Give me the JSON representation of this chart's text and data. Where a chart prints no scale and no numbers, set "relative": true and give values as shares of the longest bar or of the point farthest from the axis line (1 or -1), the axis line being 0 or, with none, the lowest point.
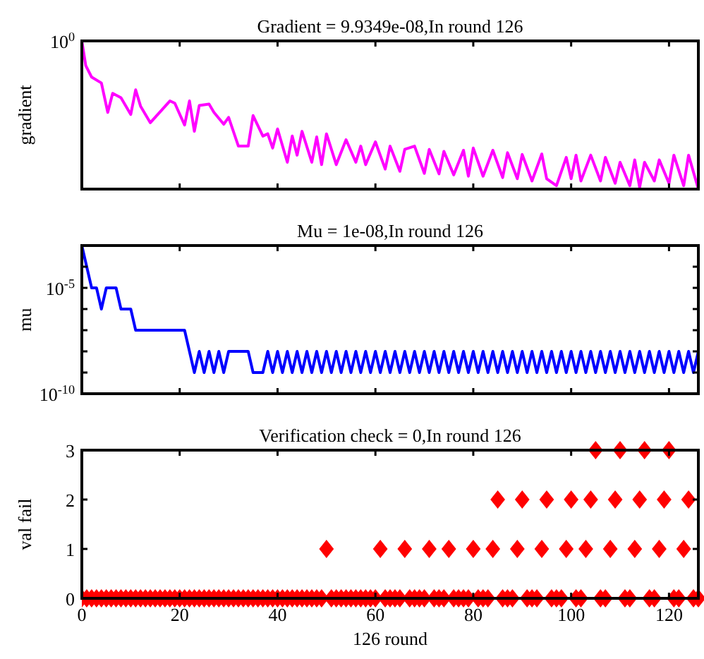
{
  "chart_data": [
    {
      "type": "line",
      "title": "Gradient = 9.9349e-08,In round 126",
      "ylabel": "gradient",
      "relative": true,
      "annotations": [
        "10$^{0}$"
      ],
      "xlim": [
        0,
        126
      ],
      "xticks": [
        0,
        20,
        40,
        60,
        80,
        100,
        120
      ],
      "tick_labels": false,
      "series": [
        {
          "color": "#ff00ff",
          "x": [
            0,
            0.8,
            2,
            4,
            5.3,
            6.3,
            8,
            10,
            11,
            12,
            14,
            18,
            19,
            21,
            22,
            23,
            24,
            26,
            27,
            29,
            30,
            32,
            34,
            35,
            37,
            38,
            39,
            40,
            42,
            43,
            44,
            45,
            47,
            48,
            49,
            50,
            52,
            54,
            56,
            57,
            58,
            60,
            62,
            63,
            65,
            66,
            68,
            70,
            71,
            73,
            74,
            76,
            78,
            79,
            80,
            82,
            84,
            86,
            87,
            89,
            90,
            92,
            94,
            95,
            97,
            99,
            100,
            101,
            102,
            104,
            106,
            107,
            109,
            110,
            112,
            113,
            114,
            115,
            117,
            118,
            120,
            121,
            123,
            124,
            126
          ],
          "values": [
            1,
            0.834,
            0.756,
            0.716,
            0.518,
            0.646,
            0.617,
            0.504,
            0.67,
            0.56,
            0.448,
            0.595,
            0.58,
            0.432,
            0.595,
            0.39,
            0.564,
            0.574,
            0.518,
            0.438,
            0.484,
            0.29,
            0.29,
            0.496,
            0.358,
            0.373,
            0.277,
            0.406,
            0.181,
            0.358,
            0.229,
            0.39,
            0.181,
            0.352,
            0.165,
            0.373,
            0.165,
            0.333,
            0.181,
            0.29,
            0.165,
            0.319,
            0.135,
            0.29,
            0.12,
            0.268,
            0.29,
            0.106,
            0.268,
            0.103,
            0.255,
            0.096,
            0.262,
            0.087,
            0.277,
            0.087,
            0.262,
            0.078,
            0.246,
            0.07,
            0.234,
            0.055,
            0.237,
            0.07,
            0.023,
            0.214,
            0.07,
            0.229,
            0.055,
            0.229,
            0.055,
            0.214,
            0.039,
            0.181,
            0.023,
            0.197,
            0.012,
            0.181,
            0.055,
            0.197,
            0.039,
            0.229,
            0.023,
            0.229,
            0
          ]
        }
      ]
    },
    {
      "type": "line",
      "title": "Mu = 1e-08,In round 126",
      "ylabel": "mu",
      "log": "y",
      "xlim": [
        0,
        126
      ],
      "xticks": [
        0,
        20,
        40,
        60,
        80,
        100,
        120
      ],
      "ylim": [
        1e-10,
        0.001
      ],
      "yticks": [
        {
          "value": 1e-10,
          "label": "10$^{-10}$"
        },
        {
          "value": 1e-09,
          "label": null
        },
        {
          "value": 1e-08,
          "label": null
        },
        {
          "value": 1e-07,
          "label": null
        },
        {
          "value": 1e-06,
          "label": null
        },
        {
          "value": 1e-05,
          "label": "10$^{-5}$"
        },
        {
          "value": 0.0001,
          "label": null
        }
      ],
      "tick_labels": "y",
      "x": [
        0,
        1,
        2,
        3,
        4,
        5,
        6,
        7,
        8,
        9,
        10,
        11,
        12,
        13,
        14,
        15,
        16,
        17,
        18,
        19,
        20,
        21,
        22,
        23,
        24,
        25,
        26,
        27,
        28,
        29,
        30,
        31,
        32,
        33,
        34,
        35,
        36,
        37,
        38,
        39,
        40,
        41,
        42,
        43,
        44,
        45,
        46,
        47,
        48,
        49,
        50,
        51,
        52,
        53,
        54,
        55,
        56,
        57,
        58,
        59,
        60,
        61,
        62,
        63,
        64,
        65,
        66,
        67,
        68,
        69,
        70,
        71,
        72,
        73,
        74,
        75,
        76,
        77,
        78,
        79,
        80,
        81,
        82,
        83,
        84,
        85,
        86,
        87,
        88,
        89,
        90,
        91,
        92,
        93,
        94,
        95,
        96,
        97,
        98,
        99,
        100,
        101,
        102,
        103,
        104,
        105,
        106,
        107,
        108,
        109,
        110,
        111,
        112,
        113,
        114,
        115,
        116,
        117,
        118,
        119,
        120,
        121,
        122,
        123,
        124,
        125,
        126
      ],
      "series": [
        {
          "color": "#0000ff",
          "values": [
            0.001,
            0.0001,
            1e-05,
            1e-05,
            1e-06,
            1e-05,
            1e-05,
            1e-05,
            1e-06,
            1e-06,
            1e-06,
            1e-07,
            1e-07,
            1e-07,
            1e-07,
            1e-07,
            1e-07,
            1e-07,
            1e-07,
            1e-07,
            1e-07,
            1e-07,
            1e-08,
            1e-09,
            1e-08,
            1e-09,
            1e-08,
            1e-09,
            1e-08,
            1e-09,
            1e-08,
            1e-08,
            1e-08,
            1e-08,
            1e-08,
            1e-09,
            1e-09,
            1e-09,
            1e-08,
            1e-09,
            1e-08,
            1e-09,
            1e-08,
            1e-09,
            1e-08,
            1e-09,
            1e-08,
            1e-09,
            1e-08,
            1e-09,
            1e-08,
            1e-09,
            1e-08,
            1e-09,
            1e-08,
            1e-09,
            1e-08,
            1e-09,
            1e-08,
            1e-09,
            1e-08,
            1e-09,
            1e-08,
            1e-09,
            1e-08,
            1e-09,
            1e-08,
            1e-09,
            1e-08,
            1e-09,
            1e-08,
            1e-09,
            1e-08,
            1e-09,
            1e-08,
            1e-09,
            1e-08,
            1e-09,
            1e-08,
            1e-09,
            1e-08,
            1e-09,
            1e-08,
            1e-09,
            1e-08,
            1e-09,
            1e-08,
            1e-09,
            1e-08,
            1e-09,
            1e-08,
            1e-09,
            1e-08,
            1e-09,
            1e-08,
            1e-09,
            1e-08,
            1e-09,
            1e-08,
            1e-09,
            1e-08,
            1e-09,
            1e-08,
            1e-09,
            1e-08,
            1e-09,
            1e-08,
            1e-09,
            1e-08,
            1e-09,
            1e-08,
            1e-09,
            1e-08,
            1e-09,
            1e-08,
            1e-09,
            1e-08,
            1e-09,
            1e-08,
            1e-09,
            1e-08,
            1e-09,
            1e-08,
            1e-09,
            1e-08,
            1e-09,
            1e-08
          ]
        }
      ]
    },
    {
      "type": "scatter",
      "title": "Verification check = 0,In round 126",
      "ylabel": "val fail",
      "xlabel": "126 round",
      "marker": "diamond",
      "xlim": [
        0,
        126
      ],
      "xticks": [
        0,
        20,
        40,
        60,
        80,
        100,
        120
      ],
      "ylim": [
        0,
        3
      ],
      "yticks": [
        0,
        1,
        2,
        3
      ],
      "x": [
        0,
        1,
        2,
        3,
        4,
        5,
        6,
        7,
        8,
        9,
        10,
        11,
        12,
        13,
        14,
        15,
        16,
        17,
        18,
        19,
        20,
        21,
        22,
        23,
        24,
        25,
        26,
        27,
        28,
        29,
        30,
        31,
        32,
        33,
        34,
        35,
        36,
        37,
        38,
        39,
        40,
        41,
        42,
        43,
        44,
        45,
        46,
        47,
        48,
        49,
        50,
        51,
        52,
        53,
        54,
        55,
        56,
        57,
        58,
        59,
        60,
        61,
        62,
        63,
        64,
        65,
        66,
        67,
        68,
        69,
        70,
        71,
        72,
        73,
        74,
        75,
        76,
        77,
        78,
        79,
        80,
        81,
        82,
        83,
        84,
        85,
        86,
        87,
        88,
        89,
        90,
        91,
        92,
        93,
        94,
        95,
        96,
        97,
        98,
        99,
        100,
        101,
        102,
        103,
        104,
        105,
        106,
        107,
        108,
        109,
        110,
        111,
        112,
        113,
        114,
        115,
        116,
        117,
        118,
        119,
        120,
        121,
        122,
        123,
        124,
        125,
        126
      ],
      "series": [
        {
          "color": "#ff0000",
          "values": [
            0,
            0,
            0,
            0,
            0,
            0,
            0,
            0,
            0,
            0,
            0,
            0,
            0,
            0,
            0,
            0,
            0,
            0,
            0,
            0,
            0,
            0,
            0,
            0,
            0,
            0,
            0,
            0,
            0,
            0,
            0,
            0,
            0,
            0,
            0,
            0,
            0,
            0,
            0,
            0,
            0,
            0,
            0,
            0,
            0,
            0,
            0,
            0,
            0,
            0,
            1,
            0,
            0,
            0,
            0,
            0,
            0,
            0,
            0,
            0,
            0,
            1,
            0,
            0,
            0,
            0,
            1,
            0,
            0,
            0,
            0,
            1,
            0,
            0,
            0,
            1,
            0,
            0,
            0,
            0,
            1,
            0,
            0,
            0,
            1,
            2,
            0,
            0,
            0,
            1,
            2,
            0,
            0,
            0,
            1,
            2,
            0,
            0,
            0,
            1,
            2,
            0,
            0,
            1,
            2,
            3,
            0,
            0,
            1,
            2,
            3,
            0,
            0,
            1,
            2,
            3,
            0,
            0,
            1,
            2,
            3,
            0,
            0,
            1,
            2,
            0,
            0
          ]
        }
      ]
    }
  ]
}
